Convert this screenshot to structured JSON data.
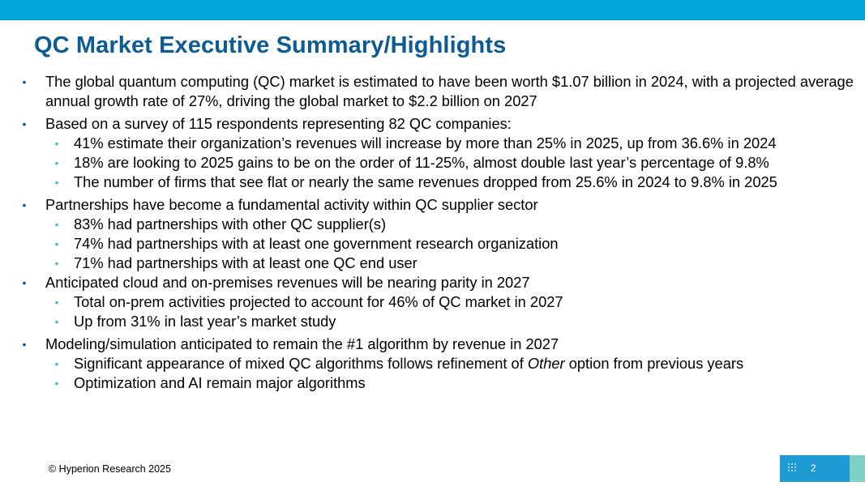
{
  "slide": {
    "title": "QC Market Executive Summary/Highlights",
    "copyright": "© Hyperion Research 2025",
    "page_number": "2",
    "colors": {
      "accent_bar": "#00a6dc",
      "title": "#0d5b93",
      "sub_bullet": "#4fb6e0"
    }
  },
  "bullets": [
    {
      "text": "The global quantum computing (QC) market is estimated to have been worth $1.07 billion in 2024, with a projected average annual growth rate of 27%, driving the global market to $2.2 billion on 2027",
      "subs": []
    },
    {
      "text": "Based on a survey of 115 respondents representing 82 QC companies:",
      "subs": [
        "41% estimate their organization’s revenues will increase by more than 25% in 2025, up from 36.6% in 2024",
        "18% are looking to 2025 gains to be on the order of 11-25%, almost double last year’s percentage of 9.8%",
        "The number of firms that see flat or nearly the same revenues dropped from 25.6% in 2024 to 9.8% in 2025"
      ]
    },
    {
      "text": "Partnerships have become a fundamental activity within QC supplier sector",
      "subs": [
        "83% had partnerships with other QC supplier(s)",
        "74% had partnerships with at least one government research organization",
        "71% had partnerships with at least one QC end user"
      ]
    },
    {
      "text": "Anticipated cloud and on-premises revenues will be nearing parity in 2027",
      "subs": [
        "Total on-prem activities projected to account for 46% of QC market in 2027",
        "Up from 31% in last year’s market study"
      ]
    },
    {
      "text": "Modeling/simulation anticipated to remain the #1 algorithm by revenue in 2027",
      "subs": [
        {
          "before": "Significant appearance of mixed QC algorithms follows refinement of ",
          "em": "Other",
          "after": " option from previous years"
        },
        "Optimization and AI remain major algorithms"
      ]
    }
  ]
}
